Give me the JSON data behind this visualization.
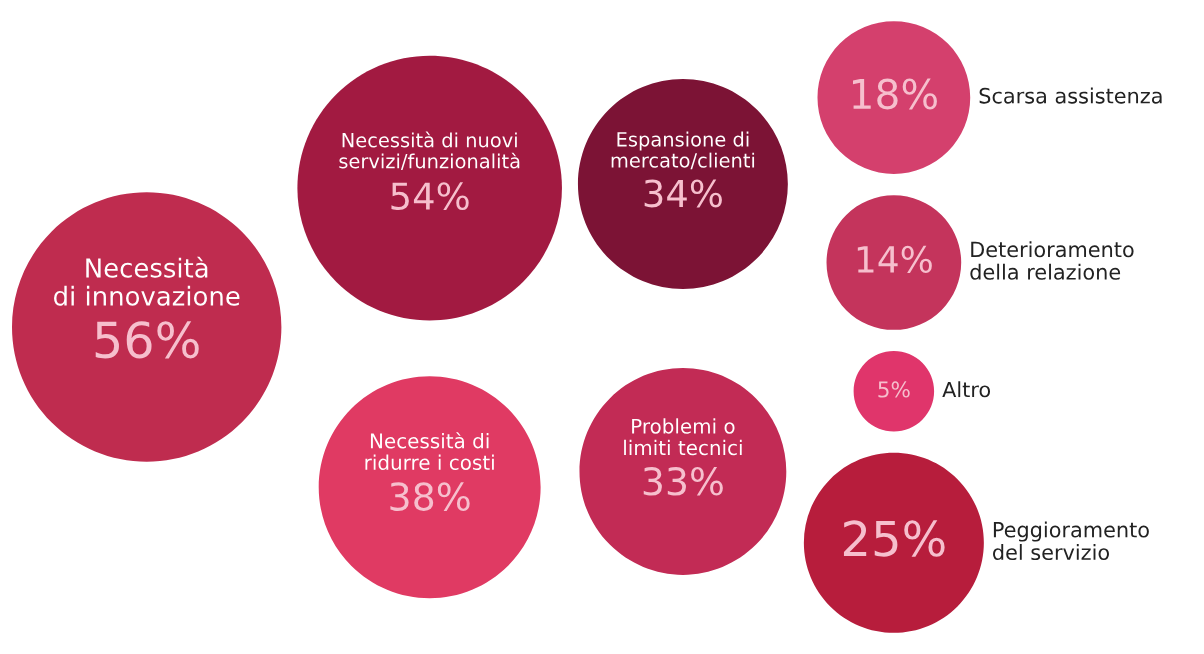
{
  "chart_data": {
    "type": "other",
    "categories": [
      "Necessità\ndi innovazione",
      "Necessità di nuovi\nservizi/funzionalità",
      "Necessità di\nridurre i costi",
      "Espansione di\nmercato/clienti",
      "Problemi o\nlimiti tecnici",
      "Peggioramento\ndel servizio",
      "Scarsa assistenza",
      "Deterioramento\ndella relazione",
      "Altro"
    ],
    "values": [
      56,
      54,
      38,
      34,
      33,
      25,
      18,
      14,
      5
    ],
    "value_labels": [
      "56%",
      "54%",
      "38%",
      "34%",
      "33%",
      "25%",
      "18%",
      "14%",
      "5%"
    ],
    "colors": [
      "#bf2c4f",
      "#a21a41",
      "#e03a63",
      "#7c1335",
      "#c22b55",
      "#b71d3c",
      "#d4406d",
      "#c4345c",
      "#e0356b"
    ]
  }
}
